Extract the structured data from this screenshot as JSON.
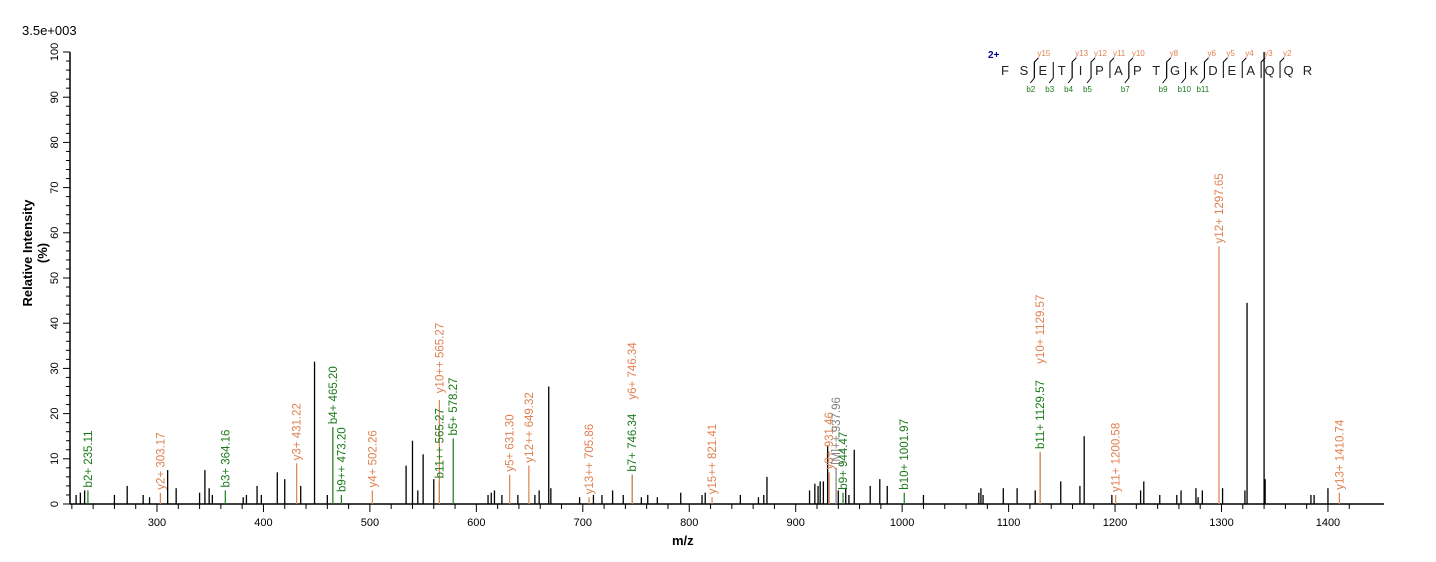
{
  "header": {
    "scale_label": "3.5e+003"
  },
  "axes": {
    "ylabel": "Relative   Intensity (%)",
    "xlabel": "m/z"
  },
  "colors": {
    "b_ion": "#1a7a1a",
    "y_ion": "#e08050",
    "unassigned": "#000000",
    "charge": "#00008b",
    "other": "#808080"
  },
  "sequence": {
    "charge": "2+",
    "residues": [
      "F",
      "S",
      "E",
      "T",
      "I",
      "P",
      "A",
      "P",
      "T",
      "G",
      "K",
      "D",
      "E",
      "A",
      "Q",
      "Q",
      "R"
    ],
    "y_labels": [
      {
        "after": 2,
        "label": "y15"
      },
      {
        "after": 4,
        "label": "y13"
      },
      {
        "after": 5,
        "label": "y12"
      },
      {
        "after": 6,
        "label": "y11"
      },
      {
        "after": 7,
        "label": "y10"
      },
      {
        "after": 9,
        "label": "y8"
      },
      {
        "after": 11,
        "label": "y6"
      },
      {
        "after": 12,
        "label": "y5"
      },
      {
        "after": 13,
        "label": "y4"
      },
      {
        "after": 14,
        "label": "y3"
      },
      {
        "after": 15,
        "label": "y2"
      }
    ],
    "b_labels": [
      {
        "after": 2,
        "label": "b2"
      },
      {
        "after": 3,
        "label": "b3"
      },
      {
        "after": 4,
        "label": "b4"
      },
      {
        "after": 5,
        "label": "b5"
      },
      {
        "after": 7,
        "label": "b7"
      },
      {
        "after": 9,
        "label": "b9"
      },
      {
        "after": 10,
        "label": "b10"
      },
      {
        "after": 11,
        "label": "b11"
      }
    ]
  },
  "chart_data": {
    "type": "bar",
    "title": "",
    "xlabel": "m/z",
    "ylabel": "Relative Intensity (%)",
    "xlim": [
      220,
      1455
    ],
    "ylim": [
      0,
      100
    ],
    "x_ticks": [
      300,
      400,
      500,
      600,
      700,
      800,
      900,
      1000,
      1100,
      1200,
      1300,
      1400
    ],
    "y_ticks": [
      0,
      10,
      20,
      30,
      40,
      50,
      60,
      70,
      80,
      90,
      100
    ],
    "base_peak_intensity": "3.5e+003",
    "annotated_peaks": [
      {
        "mz": 235.11,
        "intensity": 3,
        "label": "b2+ 235.11",
        "type": "b"
      },
      {
        "mz": 303.17,
        "intensity": 2.5,
        "label": "y2+ 303.17",
        "type": "y"
      },
      {
        "mz": 364.16,
        "intensity": 3,
        "label": "b3+ 364.16",
        "type": "b"
      },
      {
        "mz": 431.22,
        "intensity": 9,
        "label": "y3+ 431.22",
        "type": "y"
      },
      {
        "mz": 465.2,
        "intensity": 17,
        "label": "b4+ 465.20",
        "type": "b"
      },
      {
        "mz": 473.2,
        "intensity": 2,
        "label": "b9++ 473.20",
        "type": "b"
      },
      {
        "mz": 502.26,
        "intensity": 3,
        "label": "y4+ 502.26",
        "type": "y"
      },
      {
        "mz": 565.27,
        "intensity": 5,
        "label": "b11++ 565.27",
        "type": "b"
      },
      {
        "mz": 565.27,
        "intensity": 23,
        "label": "y10++ 565.27",
        "type": "y"
      },
      {
        "mz": 578.27,
        "intensity": 14.5,
        "label": "b5+ 578.27",
        "type": "b"
      },
      {
        "mz": 631.3,
        "intensity": 6.5,
        "label": "y5+ 631.30",
        "type": "y"
      },
      {
        "mz": 649.32,
        "intensity": 8.5,
        "label": "y12++ 649.32",
        "type": "y"
      },
      {
        "mz": 705.86,
        "intensity": 1.5,
        "label": "y13++ 705.86",
        "type": "y"
      },
      {
        "mz": 746.34,
        "intensity": 6.5,
        "label": "b7+ 746.34",
        "type": "b"
      },
      {
        "mz": 746.34,
        "intensity": 6.5,
        "label": "y6+ 746.34",
        "type": "y"
      },
      {
        "mz": 821.41,
        "intensity": 1.5,
        "label": "y15++ 821.41",
        "type": "y"
      },
      {
        "mz": 931.46,
        "intensity": 7,
        "label": "y8+ 931.46",
        "type": "y"
      },
      {
        "mz": 937.96,
        "intensity": 8,
        "label": "[M]++ 937.96",
        "type": "other"
      },
      {
        "mz": 944.47,
        "intensity": 2.5,
        "label": "b9+ 944.47",
        "type": "b"
      },
      {
        "mz": 1001.97,
        "intensity": 2.5,
        "label": "b10+ 1001.97",
        "type": "b"
      },
      {
        "mz": 1129.57,
        "intensity": 11.5,
        "label": "b11+ 1129.57",
        "type": "b"
      },
      {
        "mz": 1129.57,
        "intensity": 11.5,
        "label": "y10+ 1129.57",
        "type": "y"
      },
      {
        "mz": 1200.58,
        "intensity": 2,
        "label": "y11+ 1200.58",
        "type": "y"
      },
      {
        "mz": 1297.65,
        "intensity": 57,
        "label": "y12+ 1297.65",
        "type": "y"
      },
      {
        "mz": 1410.74,
        "intensity": 2.5,
        "label": "y13+ 1410.74",
        "type": "y"
      }
    ],
    "unassigned_peaks": [
      [
        224,
        2
      ],
      [
        228,
        2.5
      ],
      [
        232,
        3
      ],
      [
        260,
        2
      ],
      [
        272,
        4
      ],
      [
        287,
        2
      ],
      [
        293,
        1.5
      ],
      [
        310,
        7.5
      ],
      [
        318,
        3.5
      ],
      [
        340,
        2.5
      ],
      [
        345,
        7.5
      ],
      [
        349,
        3.5
      ],
      [
        352,
        2
      ],
      [
        381,
        1.5
      ],
      [
        384,
        2
      ],
      [
        394,
        4
      ],
      [
        398,
        2
      ],
      [
        413,
        7
      ],
      [
        420,
        5.5
      ],
      [
        435,
        4
      ],
      [
        448,
        31.5
      ],
      [
        460,
        2
      ],
      [
        534,
        8.5
      ],
      [
        540,
        14
      ],
      [
        545,
        3
      ],
      [
        550,
        11
      ],
      [
        560,
        5.5
      ],
      [
        611,
        2
      ],
      [
        614,
        2.5
      ],
      [
        617,
        3
      ],
      [
        624,
        2
      ],
      [
        639,
        2
      ],
      [
        655,
        2
      ],
      [
        659,
        3
      ],
      [
        668,
        26
      ],
      [
        670,
        3.5
      ],
      [
        697,
        1.5
      ],
      [
        710,
        2
      ],
      [
        718,
        2
      ],
      [
        728,
        3
      ],
      [
        738,
        2
      ],
      [
        755,
        1.5
      ],
      [
        761,
        2
      ],
      [
        770,
        1.5
      ],
      [
        792,
        2.5
      ],
      [
        812,
        2
      ],
      [
        815,
        2.5
      ],
      [
        848,
        2
      ],
      [
        865,
        1.5
      ],
      [
        870,
        2
      ],
      [
        873,
        6
      ],
      [
        913,
        3
      ],
      [
        918,
        4.5
      ],
      [
        921,
        4
      ],
      [
        923,
        5
      ],
      [
        926,
        5
      ],
      [
        930,
        13
      ],
      [
        940,
        3
      ],
      [
        947,
        3.5
      ],
      [
        950,
        2
      ],
      [
        955,
        12
      ],
      [
        970,
        4
      ],
      [
        979,
        5.5
      ],
      [
        986,
        4
      ],
      [
        1020,
        2
      ],
      [
        1072,
        2.5
      ],
      [
        1074,
        3.5
      ],
      [
        1076,
        2
      ],
      [
        1095,
        3.5
      ],
      [
        1108,
        3.5
      ],
      [
        1125,
        3
      ],
      [
        1149,
        5
      ],
      [
        1167,
        4
      ],
      [
        1171,
        15
      ],
      [
        1197,
        2
      ],
      [
        1224,
        3
      ],
      [
        1227,
        5
      ],
      [
        1242,
        2
      ],
      [
        1258,
        2
      ],
      [
        1262,
        3
      ],
      [
        1276,
        3.5
      ],
      [
        1278,
        1.5
      ],
      [
        1282,
        3
      ],
      [
        1301,
        3.5
      ],
      [
        1322,
        3
      ],
      [
        1324,
        44.5
      ],
      [
        1340,
        100
      ],
      [
        1341,
        5.5
      ],
      [
        1384,
        2
      ],
      [
        1387,
        2
      ],
      [
        1400,
        3.5
      ]
    ]
  }
}
